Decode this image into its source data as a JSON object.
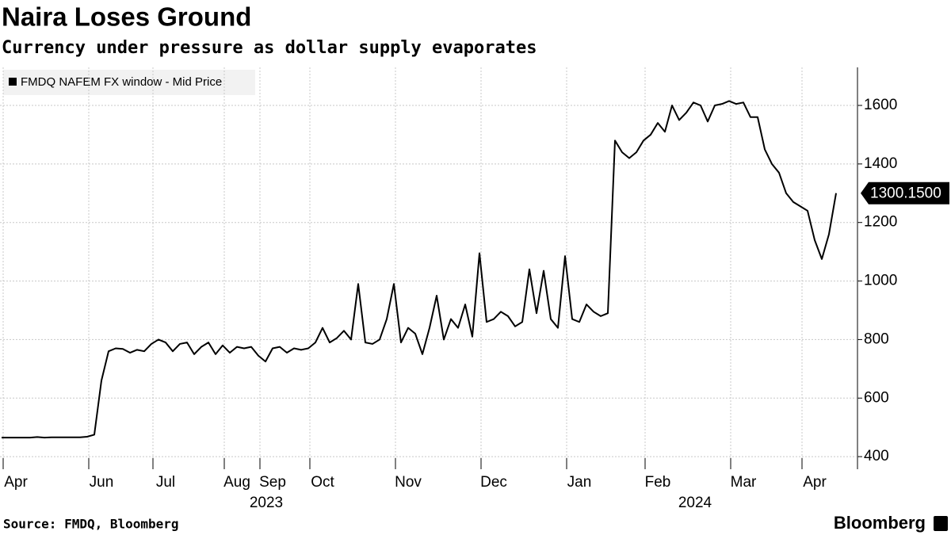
{
  "chart_data": {
    "type": "line",
    "title": "Naira Loses Ground",
    "subtitle": "Currency under pressure as dollar supply evaporates",
    "source": "Source: FMDQ, Bloomberg",
    "brand": "Bloomberg",
    "year_labels": [
      "2023",
      "2024"
    ],
    "categories": [
      null,
      null,
      "Apr",
      null,
      null,
      null,
      null,
      null,
      null,
      null,
      null,
      null,
      null,
      null,
      "Jun",
      null,
      null,
      null,
      null,
      null,
      null,
      null,
      null,
      "Jul",
      null,
      null,
      null,
      null,
      null,
      null,
      null,
      null,
      null,
      "Aug",
      null,
      null,
      null,
      null,
      "Sep",
      null,
      null,
      null,
      null,
      null,
      null,
      "Oct",
      null,
      null,
      null,
      null,
      null,
      null,
      null,
      null,
      null,
      null,
      null,
      "Nov",
      null,
      null,
      null,
      null,
      null,
      null,
      null,
      null,
      null,
      null,
      null,
      "Dec",
      null,
      null,
      null,
      null,
      null,
      null,
      null,
      null,
      null,
      null,
      null,
      "Jan",
      null,
      null,
      null,
      null,
      null,
      null,
      null,
      null,
      null,
      null,
      "Feb",
      null,
      null,
      null,
      null,
      null,
      null,
      null,
      null,
      null,
      null,
      null,
      "Mar",
      null,
      null,
      null,
      null,
      null,
      null,
      null,
      null,
      null,
      "Apr",
      null,
      null,
      null
    ],
    "series": [
      {
        "name": "FMDQ NAFEM FX window - Mid Price",
        "color": "#000000",
        "values": [
          465,
          465,
          465,
          465,
          465,
          467,
          465,
          466,
          466,
          466,
          466,
          466,
          468,
          475,
          660,
          760,
          770,
          768,
          755,
          765,
          760,
          785,
          800,
          790,
          760,
          785,
          790,
          750,
          775,
          790,
          750,
          780,
          755,
          775,
          770,
          775,
          745,
          725,
          770,
          775,
          755,
          770,
          765,
          770,
          790,
          840,
          790,
          805,
          830,
          800,
          990,
          790,
          785,
          800,
          870,
          990,
          790,
          840,
          820,
          750,
          840,
          950,
          800,
          870,
          840,
          920,
          810,
          1095,
          860,
          870,
          895,
          880,
          845,
          860,
          1040,
          890,
          1035,
          870,
          840,
          1085,
          870,
          860,
          920,
          895,
          880,
          890,
          1480,
          1440,
          1420,
          1440,
          1480,
          1500,
          1540,
          1510,
          1600,
          1550,
          1575,
          1610,
          1600,
          1545,
          1600,
          1605,
          1615,
          1605,
          1610,
          1560,
          1560,
          1450,
          1400,
          1370,
          1300,
          1270,
          1255,
          1240,
          1140,
          1075,
          1160,
          1300.15
        ],
        "last_value_label": "1300.1500"
      }
    ],
    "ylim": [
      357,
      1730
    ],
    "yticks": [
      400,
      600,
      800,
      1000,
      1200,
      1400,
      1600
    ],
    "grid": true
  }
}
